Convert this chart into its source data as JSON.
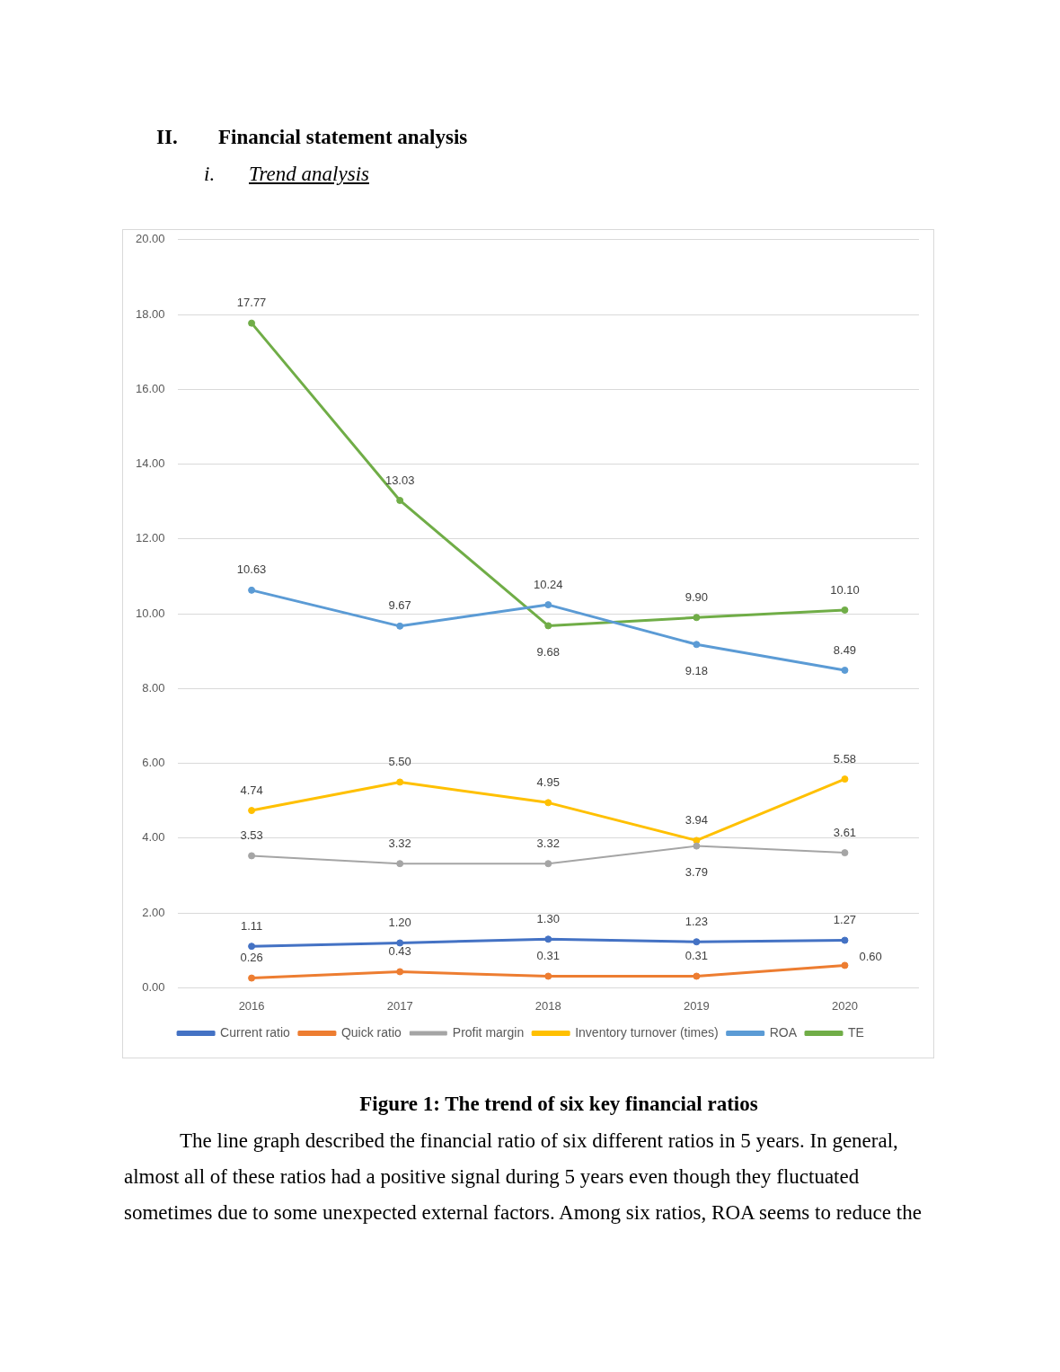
{
  "chart_data": {
    "type": "line",
    "categories": [
      "2016",
      "2017",
      "2018",
      "2019",
      "2020"
    ],
    "series": [
      {
        "name": "Current ratio",
        "color": "#4472c4",
        "values": [
          1.11,
          1.2,
          1.3,
          1.23,
          1.27
        ],
        "value_labels": [
          "1.11",
          "1.20",
          "1.30",
          "1.23",
          "1.27"
        ]
      },
      {
        "name": "Quick ratio",
        "color": "#ed7d31",
        "values": [
          0.26,
          0.43,
          0.31,
          0.31,
          0.6
        ],
        "value_labels": [
          "0.26",
          "0.43",
          "0.31",
          "0.31",
          "0.60"
        ]
      },
      {
        "name": "Profit margin",
        "color": "#a5a5a5",
        "values": [
          3.53,
          3.32,
          3.32,
          3.79,
          3.61
        ],
        "value_labels": [
          "3.53",
          "3.32",
          "3.32",
          "3.79",
          "3.61"
        ]
      },
      {
        "name": "Inventory turnover (times)",
        "color": "#ffc000",
        "values": [
          4.74,
          5.5,
          4.95,
          3.94,
          5.58
        ],
        "value_labels": [
          "4.74",
          "5.50",
          "4.95",
          "3.94",
          "5.58"
        ]
      },
      {
        "name": "ROA",
        "color": "#5b9bd5",
        "values": [
          10.63,
          9.67,
          10.24,
          9.18,
          8.49
        ],
        "value_labels": [
          "10.63",
          "9.67",
          "10.24",
          "9.18",
          "8.49"
        ]
      },
      {
        "name": "TE",
        "color": "#70ad47",
        "values": [
          17.77,
          13.03,
          9.68,
          9.9,
          10.1
        ],
        "value_labels": [
          "17.77",
          "13.03",
          "9.68",
          "9.90",
          "10.10"
        ]
      }
    ],
    "ylim": [
      0,
      20
    ],
    "yticks": [
      {
        "value": 0,
        "label": "0.00"
      },
      {
        "value": 2,
        "label": "2.00"
      },
      {
        "value": 4,
        "label": "4.00"
      },
      {
        "value": 6,
        "label": "6.00"
      },
      {
        "value": 8,
        "label": "8.00"
      },
      {
        "value": 10,
        "label": "10.00"
      },
      {
        "value": 12,
        "label": "12.00"
      },
      {
        "value": 14,
        "label": "14.00"
      },
      {
        "value": 16,
        "label": "16.00"
      },
      {
        "value": 18,
        "label": "18.00"
      },
      {
        "value": 20,
        "label": "20.00"
      }
    ],
    "grid": "y",
    "legend": "bottom",
    "marker": "circle",
    "line_style": "solid",
    "annotations": [
      "II.",
      "Financial statement analysis",
      "i.",
      "Trend analysis",
      "Figure 1: The trend of six key financial ratios",
      "The line graph described the financial ratio of six different ratios in 5 years. In general, almost all of these ratios had a positive signal during 5 years even though they fluctuated sometimes due to some unexpected external factors. Among six ratios, ROA seems to reduce the"
    ]
  }
}
